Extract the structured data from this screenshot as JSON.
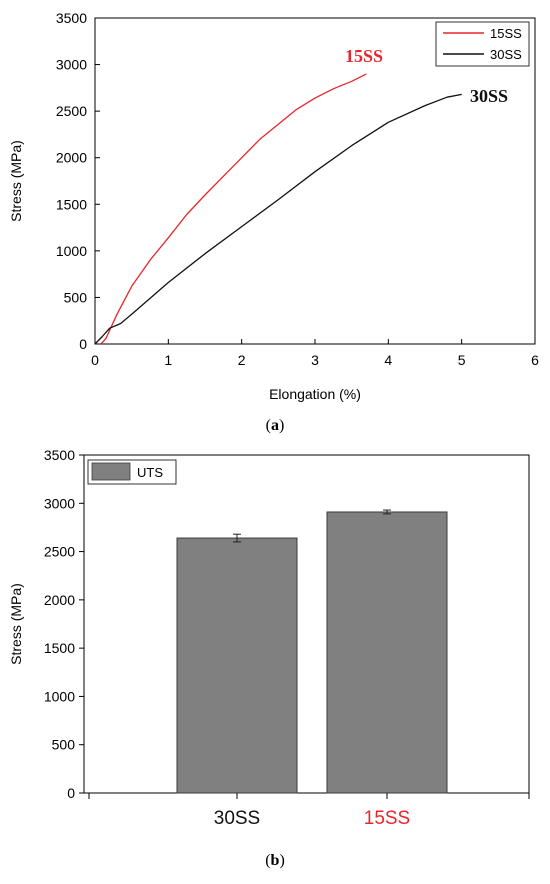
{
  "colors": {
    "red": "#e8262b",
    "black": "#111111",
    "bar": "#808080",
    "bar_edge": "#3a3a3a"
  },
  "chart_data": [
    {
      "type": "line",
      "xlabel": "Elongation (%)",
      "ylabel": "Stress (MPa)",
      "xlim": [
        0,
        6
      ],
      "ylim": [
        0,
        3500
      ],
      "xticks": [
        0,
        1,
        2,
        3,
        4,
        5,
        6
      ],
      "yticks": [
        0,
        500,
        1000,
        1500,
        2000,
        2500,
        3000,
        3500
      ],
      "legend_position": "top-right",
      "series": [
        {
          "name": "15SS",
          "color": "#e8262b",
          "x": [
            0.08,
            0.15,
            0.3,
            0.5,
            0.75,
            1.0,
            1.25,
            1.5,
            1.75,
            2.0,
            2.25,
            2.5,
            2.75,
            3.0,
            3.25,
            3.5,
            3.7
          ],
          "y": [
            0,
            60,
            320,
            620,
            900,
            1140,
            1390,
            1600,
            1800,
            2000,
            2200,
            2360,
            2520,
            2640,
            2740,
            2820,
            2900
          ]
        },
        {
          "name": "30SS",
          "color": "#111111",
          "x": [
            0.0,
            0.1,
            0.2,
            0.35,
            0.5,
            1.0,
            1.5,
            2.0,
            2.5,
            3.0,
            3.5,
            4.0,
            4.5,
            4.8,
            5.0
          ],
          "y": [
            0,
            80,
            170,
            220,
            320,
            660,
            970,
            1260,
            1550,
            1850,
            2130,
            2380,
            2560,
            2650,
            2680
          ]
        }
      ],
      "annotations": [
        {
          "text": "15SS",
          "color": "#e8262b"
        },
        {
          "text": "30SS",
          "color": "#111111"
        }
      ],
      "caption": "(a)"
    },
    {
      "type": "bar",
      "ylabel": "Stress (MPa)",
      "ylim": [
        0,
        3500
      ],
      "yticks": [
        0,
        500,
        1000,
        1500,
        2000,
        2500,
        3000,
        3500
      ],
      "legend_position": "top-left",
      "categories": [
        "30SS",
        "15SS"
      ],
      "category_colors": [
        "#111111",
        "#e8262b"
      ],
      "series": [
        {
          "name": "UTS",
          "values": [
            2640,
            2910
          ],
          "errors": [
            40,
            20
          ]
        }
      ],
      "caption": "(b)"
    }
  ]
}
